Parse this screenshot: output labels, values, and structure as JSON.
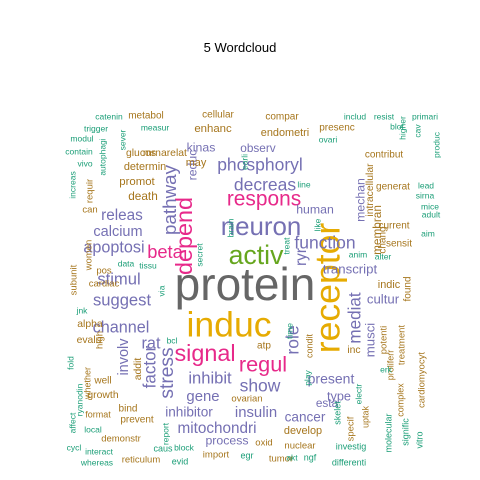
{
  "title": "5  Wordcloud",
  "chart_data": {
    "type": "wordcloud",
    "title": "5  Wordcloud",
    "palette": {
      "teal": "#1b9e77",
      "orange": "#d95f02",
      "purple": "#7570b3",
      "magenta": "#e7298a",
      "green": "#66a61e",
      "gold": "#e6ab02",
      "brown": "#a6761d",
      "gray": "#666666"
    },
    "words": [
      {
        "text": "protein",
        "weight": 100,
        "color": "gray",
        "rotate": false
      },
      {
        "text": "induc",
        "weight": 74,
        "color": "gold",
        "rotate": false
      },
      {
        "text": "receptor",
        "weight": 74,
        "color": "gold",
        "rotate": true
      },
      {
        "text": "activ",
        "weight": 52,
        "color": "green",
        "rotate": false
      },
      {
        "text": "neuron",
        "weight": 50,
        "color": "purple",
        "rotate": false
      },
      {
        "text": "depend",
        "weight": 44,
        "color": "magenta",
        "rotate": true
      },
      {
        "text": "signal",
        "weight": 44,
        "color": "magenta",
        "rotate": false
      },
      {
        "text": "regul",
        "weight": 40,
        "color": "magenta",
        "rotate": false
      },
      {
        "text": "respons",
        "weight": 38,
        "color": "magenta",
        "rotate": false
      },
      {
        "text": "stress",
        "weight": 34,
        "color": "purple",
        "rotate": true
      },
      {
        "text": "pathway",
        "weight": 33,
        "color": "purple",
        "rotate": true
      },
      {
        "text": "beta",
        "weight": 32,
        "color": "magenta",
        "rotate": false
      },
      {
        "text": "phosphoryl",
        "weight": 30,
        "color": "purple",
        "rotate": false
      },
      {
        "text": "decreas",
        "weight": 30,
        "color": "purple",
        "rotate": false
      },
      {
        "text": "function",
        "weight": 30,
        "color": "purple",
        "rotate": false
      },
      {
        "text": "show",
        "weight": 30,
        "color": "purple",
        "rotate": false
      },
      {
        "text": "role",
        "weight": 30,
        "color": "purple",
        "rotate": true
      },
      {
        "text": "factor",
        "weight": 29,
        "color": "purple",
        "rotate": true
      },
      {
        "text": "mediat",
        "weight": 29,
        "color": "purple",
        "rotate": true
      },
      {
        "text": "inhibit",
        "weight": 28,
        "color": "purple",
        "rotate": false
      },
      {
        "text": "stimul",
        "weight": 28,
        "color": "purple",
        "rotate": false
      },
      {
        "text": "suggest",
        "weight": 28,
        "color": "purple",
        "rotate": false
      },
      {
        "text": "channel",
        "weight": 27,
        "color": "purple",
        "rotate": false
      },
      {
        "text": "apoptosi",
        "weight": 27,
        "color": "purple",
        "rotate": false
      },
      {
        "text": "rat",
        "weight": 27,
        "color": "purple",
        "rotate": false
      },
      {
        "text": "ryr",
        "weight": 25,
        "color": "purple",
        "rotate": true
      },
      {
        "text": "mitochondri",
        "weight": 25,
        "color": "purple",
        "rotate": false
      },
      {
        "text": "releas",
        "weight": 25,
        "color": "purple",
        "rotate": false
      },
      {
        "text": "gene",
        "weight": 24,
        "color": "purple",
        "rotate": false
      },
      {
        "text": "insulin",
        "weight": 24,
        "color": "purple",
        "rotate": false
      },
      {
        "text": "involv",
        "weight": 23,
        "color": "purple",
        "rotate": true
      },
      {
        "text": "calcium",
        "weight": 23,
        "color": "purple",
        "rotate": false
      },
      {
        "text": "present",
        "weight": 22,
        "color": "purple",
        "rotate": false
      },
      {
        "text": "cancer",
        "weight": 21,
        "color": "purple",
        "rotate": false
      },
      {
        "text": "inhibitor",
        "weight": 21,
        "color": "purple",
        "rotate": false
      },
      {
        "text": "transcript",
        "weight": 20,
        "color": "purple",
        "rotate": false
      },
      {
        "text": "musci",
        "weight": 20,
        "color": "purple",
        "rotate": true
      },
      {
        "text": "cultur",
        "weight": 20,
        "color": "purple",
        "rotate": false
      },
      {
        "text": "type",
        "weight": 19,
        "color": "purple",
        "rotate": false
      },
      {
        "text": "process",
        "weight": 18,
        "color": "purple",
        "rotate": false
      },
      {
        "text": "reduc",
        "weight": 18,
        "color": "purple",
        "rotate": true
      },
      {
        "text": "kinas",
        "weight": 18,
        "color": "purple",
        "rotate": false
      },
      {
        "text": "human",
        "weight": 18,
        "color": "purple",
        "rotate": false
      },
      {
        "text": "mechan",
        "weight": 18,
        "color": "purple",
        "rotate": true
      },
      {
        "text": "membran",
        "weight": 17,
        "color": "brown",
        "rotate": true
      },
      {
        "text": "esta",
        "weight": 17,
        "color": "purple",
        "rotate": false
      },
      {
        "text": "observ",
        "weight": 17,
        "color": "purple",
        "rotate": false
      },
      {
        "text": "death",
        "weight": 17,
        "color": "brown",
        "rotate": false
      },
      {
        "text": "promot",
        "weight": 16,
        "color": "brown",
        "rotate": false
      },
      {
        "text": "enhanc",
        "weight": 16,
        "color": "brown",
        "rotate": false
      },
      {
        "text": "endometri",
        "weight": 15,
        "color": "brown",
        "rotate": false
      },
      {
        "text": "determin",
        "weight": 15,
        "color": "brown",
        "rotate": false
      },
      {
        "text": "may",
        "weight": 15,
        "color": "brown",
        "rotate": false
      },
      {
        "text": "develop",
        "weight": 15,
        "color": "brown",
        "rotate": false
      },
      {
        "text": "indic",
        "weight": 15,
        "color": "brown",
        "rotate": false
      },
      {
        "text": "alpha",
        "weight": 14,
        "color": "brown",
        "rotate": false
      },
      {
        "text": "intracellular",
        "weight": 14,
        "color": "brown",
        "rotate": true
      },
      {
        "text": "mrnarelat",
        "weight": 14,
        "color": "brown",
        "rotate": false
      },
      {
        "text": "glucos",
        "weight": 14,
        "color": "brown",
        "rotate": false
      },
      {
        "text": "addit",
        "weight": 14,
        "color": "brown",
        "rotate": true
      },
      {
        "text": "inc",
        "weight": 14,
        "color": "brown",
        "rotate": false
      },
      {
        "text": "growth",
        "weight": 14,
        "color": "brown",
        "rotate": false
      },
      {
        "text": "evalu",
        "weight": 14,
        "color": "brown",
        "rotate": false
      },
      {
        "text": "atp",
        "weight": 13,
        "color": "brown",
        "rotate": false
      },
      {
        "text": "cellular",
        "weight": 13,
        "color": "brown",
        "rotate": false
      },
      {
        "text": "metabol",
        "weight": 13,
        "color": "brown",
        "rotate": false
      },
      {
        "text": "compar",
        "weight": 13,
        "color": "brown",
        "rotate": false
      },
      {
        "text": "presenc",
        "weight": 13,
        "color": "brown",
        "rotate": false
      },
      {
        "text": "sensit",
        "weight": 13,
        "color": "brown",
        "rotate": false
      },
      {
        "text": "current",
        "weight": 13,
        "color": "brown",
        "rotate": false
      },
      {
        "text": "generat",
        "weight": 13,
        "color": "brown",
        "rotate": false
      },
      {
        "text": "contribut",
        "weight": 13,
        "color": "brown",
        "rotate": false
      },
      {
        "text": "chang",
        "weight": 13,
        "color": "brown",
        "rotate": true
      },
      {
        "text": "found",
        "weight": 13,
        "color": "brown",
        "rotate": true
      },
      {
        "text": "potenti",
        "weight": 12,
        "color": "brown",
        "rotate": true
      },
      {
        "text": "treatment",
        "weight": 12,
        "color": "brown",
        "rotate": true
      },
      {
        "text": "well",
        "weight": 13,
        "color": "brown",
        "rotate": false
      },
      {
        "text": "bind",
        "weight": 13,
        "color": "brown",
        "rotate": false
      },
      {
        "text": "prevent",
        "weight": 13,
        "color": "brown",
        "rotate": false
      },
      {
        "text": "demonstr",
        "weight": 12,
        "color": "brown",
        "rotate": false
      },
      {
        "text": "import",
        "weight": 12,
        "color": "brown",
        "rotate": false
      },
      {
        "text": "tumor",
        "weight": 12,
        "color": "brown",
        "rotate": false
      },
      {
        "text": "nuclear",
        "weight": 12,
        "color": "brown",
        "rotate": false
      },
      {
        "text": "oxid",
        "weight": 12,
        "color": "brown",
        "rotate": false
      },
      {
        "text": "ovarian",
        "weight": 12,
        "color": "brown",
        "rotate": false
      },
      {
        "text": "reticulum",
        "weight": 12,
        "color": "brown",
        "rotate": false
      },
      {
        "text": "requir",
        "weight": 12,
        "color": "brown",
        "rotate": true
      },
      {
        "text": "can",
        "weight": 12,
        "color": "brown",
        "rotate": false
      },
      {
        "text": "pos",
        "weight": 12,
        "color": "brown",
        "rotate": false
      },
      {
        "text": "cardiac",
        "weight": 12,
        "color": "brown",
        "rotate": false
      },
      {
        "text": "women",
        "weight": 12,
        "color": "brown",
        "rotate": true
      },
      {
        "text": "subunit",
        "weight": 12,
        "color": "brown",
        "rotate": true
      },
      {
        "text": "high",
        "weight": 12,
        "color": "brown",
        "rotate": true
      },
      {
        "text": "specif",
        "weight": 12,
        "color": "brown",
        "rotate": true
      },
      {
        "text": "cardiomyocyt",
        "weight": 12,
        "color": "brown",
        "rotate": true
      },
      {
        "text": "condit",
        "weight": 11,
        "color": "brown",
        "rotate": true
      },
      {
        "text": "proliferr",
        "weight": 11,
        "color": "brown",
        "rotate": true
      },
      {
        "text": "uptak",
        "weight": 11,
        "color": "brown",
        "rotate": true
      },
      {
        "text": "complex",
        "weight": 11,
        "color": "brown",
        "rotate": true
      },
      {
        "text": "whether",
        "weight": 11,
        "color": "brown",
        "rotate": true
      },
      {
        "text": "format",
        "weight": 11,
        "color": "brown",
        "rotate": false
      },
      {
        "text": "caus",
        "weight": 11,
        "color": "teal",
        "rotate": false
      },
      {
        "text": "evid",
        "weight": 11,
        "color": "teal",
        "rotate": false
      },
      {
        "text": "egr",
        "weight": 11,
        "color": "teal",
        "rotate": false
      },
      {
        "text": "ngf",
        "weight": 11,
        "color": "teal",
        "rotate": false
      },
      {
        "text": "differenti",
        "weight": 11,
        "color": "teal",
        "rotate": false
      },
      {
        "text": "investig",
        "weight": 11,
        "color": "teal",
        "rotate": false
      },
      {
        "text": "molecular",
        "weight": 11,
        "color": "teal",
        "rotate": true
      },
      {
        "text": "signific",
        "weight": 11,
        "color": "teal",
        "rotate": true
      },
      {
        "text": "vitro",
        "weight": 11,
        "color": "teal",
        "rotate": true
      },
      {
        "text": "skelet",
        "weight": 11,
        "color": "teal",
        "rotate": true
      },
      {
        "text": "electr",
        "weight": 10,
        "color": "teal",
        "rotate": true
      },
      {
        "text": "erk",
        "weight": 10,
        "color": "teal",
        "rotate": false
      },
      {
        "text": "akt",
        "weight": 10,
        "color": "teal",
        "rotate": false
      },
      {
        "text": "block",
        "weight": 10,
        "color": "teal",
        "rotate": false
      },
      {
        "text": "report",
        "weight": 10,
        "color": "teal",
        "rotate": true
      },
      {
        "text": "bcl",
        "weight": 10,
        "color": "teal",
        "rotate": false
      },
      {
        "text": "time",
        "weight": 10,
        "color": "teal",
        "rotate": true
      },
      {
        "text": "play",
        "weight": 10,
        "color": "teal",
        "rotate": true
      },
      {
        "text": "interact",
        "weight": 10,
        "color": "teal",
        "rotate": false
      },
      {
        "text": "whereas",
        "weight": 10,
        "color": "teal",
        "rotate": false
      },
      {
        "text": "local",
        "weight": 10,
        "color": "teal",
        "rotate": false
      },
      {
        "text": "cycl",
        "weight": 10,
        "color": "teal",
        "rotate": false
      },
      {
        "text": "affect",
        "weight": 10,
        "color": "teal",
        "rotate": true
      },
      {
        "text": "ryanodin",
        "weight": 10,
        "color": "teal",
        "rotate": true
      },
      {
        "text": "jnk",
        "weight": 10,
        "color": "teal",
        "rotate": false
      },
      {
        "text": "via",
        "weight": 10,
        "color": "teal",
        "rotate": true
      },
      {
        "text": "data",
        "weight": 10,
        "color": "teal",
        "rotate": false
      },
      {
        "text": "tissu",
        "weight": 10,
        "color": "teal",
        "rotate": false
      },
      {
        "text": "fold",
        "weight": 10,
        "color": "teal",
        "rotate": true
      },
      {
        "text": "anim",
        "weight": 10,
        "color": "teal",
        "rotate": false
      },
      {
        "text": "alter",
        "weight": 10,
        "color": "teal",
        "rotate": false
      },
      {
        "text": "like",
        "weight": 10,
        "color": "teal",
        "rotate": true
      },
      {
        "text": "treat",
        "weight": 10,
        "color": "teal",
        "rotate": true
      },
      {
        "text": "line",
        "weight": 10,
        "color": "teal",
        "rotate": false
      },
      {
        "text": "secret",
        "weight": 10,
        "color": "teal",
        "rotate": true
      },
      {
        "text": "brain",
        "weight": 10,
        "color": "teal",
        "rotate": true
      },
      {
        "text": "earli",
        "weight": 10,
        "color": "teal",
        "rotate": true
      },
      {
        "text": "sever",
        "weight": 10,
        "color": "teal",
        "rotate": true
      },
      {
        "text": "autophagi",
        "weight": 10,
        "color": "teal",
        "rotate": true
      },
      {
        "text": "increas",
        "weight": 10,
        "color": "teal",
        "rotate": true
      },
      {
        "text": "contain",
        "weight": 10,
        "color": "teal",
        "rotate": false
      },
      {
        "text": "vivo",
        "weight": 10,
        "color": "teal",
        "rotate": false
      },
      {
        "text": "modul",
        "weight": 10,
        "color": "teal",
        "rotate": false
      },
      {
        "text": "trigger",
        "weight": 10,
        "color": "teal",
        "rotate": false
      },
      {
        "text": "catenin",
        "weight": 10,
        "color": "teal",
        "rotate": false
      },
      {
        "text": "measur",
        "weight": 10,
        "color": "teal",
        "rotate": false
      },
      {
        "text": "ovari",
        "weight": 10,
        "color": "teal",
        "rotate": false
      },
      {
        "text": "includ",
        "weight": 10,
        "color": "teal",
        "rotate": false
      },
      {
        "text": "resist",
        "weight": 10,
        "color": "teal",
        "rotate": false
      },
      {
        "text": "higher",
        "weight": 10,
        "color": "teal",
        "rotate": true
      },
      {
        "text": "primari",
        "weight": 10,
        "color": "teal",
        "rotate": false
      },
      {
        "text": "blot",
        "weight": 10,
        "color": "teal",
        "rotate": false
      },
      {
        "text": "produc",
        "weight": 10,
        "color": "teal",
        "rotate": true
      },
      {
        "text": "lead",
        "weight": 10,
        "color": "teal",
        "rotate": false
      },
      {
        "text": "sirna",
        "weight": 10,
        "color": "teal",
        "rotate": false
      },
      {
        "text": "mice",
        "weight": 10,
        "color": "teal",
        "rotate": false
      },
      {
        "text": "adult",
        "weight": 10,
        "color": "teal",
        "rotate": false
      },
      {
        "text": "aim",
        "weight": 10,
        "color": "teal",
        "rotate": false
      },
      {
        "text": "cav",
        "weight": 10,
        "color": "teal",
        "rotate": true
      }
    ]
  }
}
